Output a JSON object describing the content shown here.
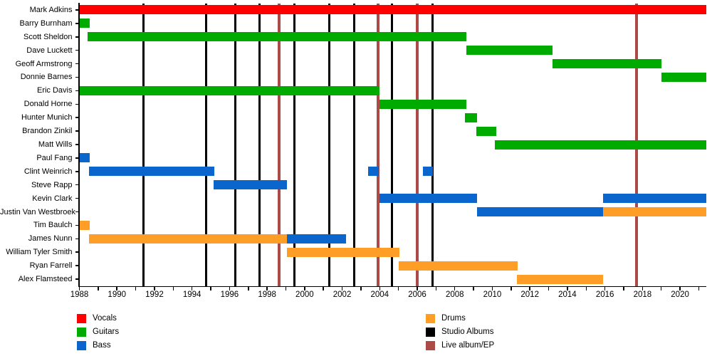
{
  "colors": {
    "vocals": "#FF0000",
    "guitars": "#00AB00",
    "bass": "#0A66CC",
    "drums": "#FF9E26",
    "studio_albums": "#000000",
    "live_album_ep": "#AC4A48"
  },
  "legend": {
    "left": [
      {
        "label": "Vocals",
        "role": "vocals"
      },
      {
        "label": "Guitars",
        "role": "guitars"
      },
      {
        "label": "Bass",
        "role": "bass"
      }
    ],
    "right": [
      {
        "label": "Drums",
        "role": "drums"
      },
      {
        "label": "Studio Albums",
        "role": "studio_albums"
      },
      {
        "label": "Live album/EP",
        "role": "live_album_ep"
      }
    ]
  },
  "chart_data": {
    "type": "gantt",
    "title": "",
    "xlabel": "",
    "ylabel": "",
    "grid": false,
    "x_domain": [
      1988,
      2021.4
    ],
    "x_ticks_labeled": [
      1988,
      1990,
      1992,
      1994,
      1996,
      1998,
      2000,
      2002,
      2004,
      2006,
      2008,
      2010,
      2012,
      2014,
      2016,
      2018,
      2020
    ],
    "x_minor_tick_step": 1,
    "members": [
      {
        "name": "Mark Adkins",
        "segments": [
          {
            "from": 1988.0,
            "to": 2021.4,
            "role": "vocals"
          }
        ]
      },
      {
        "name": "Barry Burnham",
        "segments": [
          {
            "from": 1988.0,
            "to": 1988.55,
            "role": "guitars"
          }
        ]
      },
      {
        "name": "Scott Sheldon",
        "segments": [
          {
            "from": 1988.45,
            "to": 2008.6,
            "role": "guitars"
          }
        ]
      },
      {
        "name": "Dave Luckett",
        "segments": [
          {
            "from": 2008.6,
            "to": 2013.2,
            "role": "guitars"
          }
        ]
      },
      {
        "name": "Geoff Armstrong",
        "segments": [
          {
            "from": 2013.2,
            "to": 2019.0,
            "role": "guitars"
          }
        ]
      },
      {
        "name": "Donnie Barnes",
        "segments": [
          {
            "from": 2019.0,
            "to": 2021.4,
            "role": "guitars"
          }
        ]
      },
      {
        "name": "Eric Davis",
        "segments": [
          {
            "from": 1988.0,
            "to": 2004.0,
            "role": "guitars"
          }
        ]
      },
      {
        "name": "Donald Horne",
        "segments": [
          {
            "from": 2004.0,
            "to": 2008.6,
            "role": "guitars"
          }
        ]
      },
      {
        "name": "Hunter Munich",
        "segments": [
          {
            "from": 2008.55,
            "to": 2009.2,
            "role": "guitars"
          }
        ]
      },
      {
        "name": "Brandon Zinkil",
        "segments": [
          {
            "from": 2009.15,
            "to": 2010.2,
            "role": "guitars"
          }
        ]
      },
      {
        "name": "Matt Wills",
        "segments": [
          {
            "from": 2010.15,
            "to": 2021.4,
            "role": "guitars"
          }
        ]
      },
      {
        "name": "Paul Fang",
        "segments": [
          {
            "from": 1988.0,
            "to": 1988.55,
            "role": "bass"
          }
        ]
      },
      {
        "name": "Clint Weinrich",
        "segments": [
          {
            "from": 1988.5,
            "to": 1995.2,
            "role": "bass"
          },
          {
            "from": 2003.4,
            "to": 2003.95,
            "role": "bass"
          },
          {
            "from": 2006.3,
            "to": 2006.85,
            "role": "bass"
          }
        ]
      },
      {
        "name": "Steve Rapp",
        "segments": [
          {
            "from": 1995.15,
            "to": 1999.05,
            "role": "bass"
          }
        ]
      },
      {
        "name": "Kevin Clark",
        "segments": [
          {
            "from": 2004.0,
            "to": 2009.2,
            "role": "bass"
          },
          {
            "from": 2015.9,
            "to": 2021.4,
            "role": "bass"
          }
        ]
      },
      {
        "name": "Justin Van Westbroek",
        "segments": [
          {
            "from": 2009.2,
            "to": 2015.9,
            "role": "bass"
          },
          {
            "from": 2015.9,
            "to": 2021.4,
            "role": "drums"
          }
        ]
      },
      {
        "name": "Tim Baulch",
        "segments": [
          {
            "from": 1988.0,
            "to": 1988.55,
            "role": "drums"
          }
        ]
      },
      {
        "name": "James Nunn",
        "segments": [
          {
            "from": 1988.5,
            "to": 1999.05,
            "role": "drums"
          },
          {
            "from": 1999.05,
            "to": 2002.2,
            "role": "bass"
          }
        ]
      },
      {
        "name": "William Tyler Smith",
        "segments": [
          {
            "from": 1999.05,
            "to": 2005.05,
            "role": "drums"
          }
        ]
      },
      {
        "name": "Ryan Farrell",
        "segments": [
          {
            "from": 2005.0,
            "to": 2011.35,
            "role": "drums"
          }
        ]
      },
      {
        "name": "Alex Flamsteed",
        "segments": [
          {
            "from": 2011.3,
            "to": 2015.9,
            "role": "drums"
          }
        ]
      }
    ],
    "events": [
      {
        "year": 1991.4,
        "type": "studio"
      },
      {
        "year": 1994.75,
        "type": "studio"
      },
      {
        "year": 1996.3,
        "type": "studio"
      },
      {
        "year": 1997.6,
        "type": "studio"
      },
      {
        "year": 1998.65,
        "type": "live"
      },
      {
        "year": 1999.45,
        "type": "studio"
      },
      {
        "year": 2001.3,
        "type": "studio"
      },
      {
        "year": 2002.65,
        "type": "studio"
      },
      {
        "year": 2003.9,
        "type": "live"
      },
      {
        "year": 2004.65,
        "type": "studio"
      },
      {
        "year": 2006.0,
        "type": "live"
      },
      {
        "year": 2006.8,
        "type": "studio"
      },
      {
        "year": 2017.7,
        "type": "live"
      }
    ]
  }
}
